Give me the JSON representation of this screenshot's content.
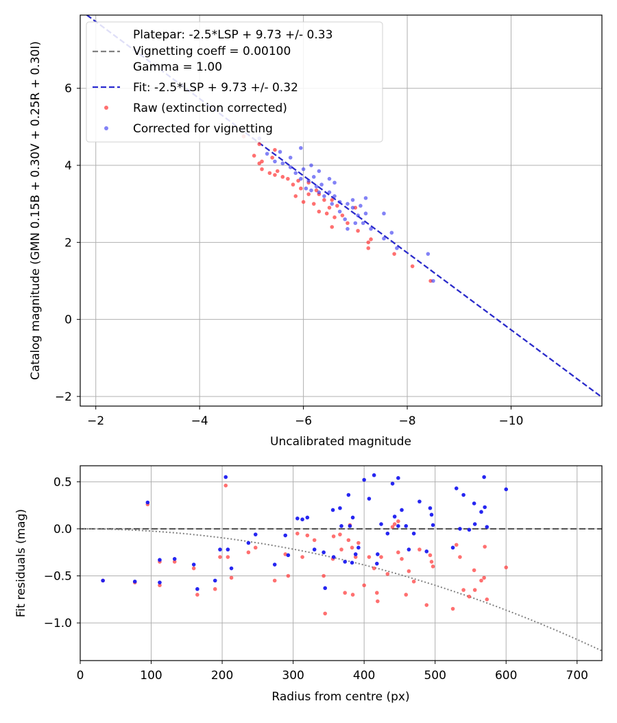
{
  "chart_data": [
    {
      "type": "scatter",
      "id": "top",
      "xlabel": "Uncalibrated magnitude",
      "ylabel": "Catalog magnitude (GMN 0.15B + 0.30V + 0.25R + 0.30I)",
      "xlim": [
        -1.7,
        -11.75
      ],
      "ylim": [
        7.9,
        -2.25
      ],
      "xticks": [
        -2,
        -4,
        -6,
        -8,
        -10
      ],
      "yticks": [
        -2,
        0,
        2,
        4,
        6
      ],
      "grid": true,
      "legend": {
        "placement": "top-left",
        "entries": [
          {
            "label": "Platepar: -2.5*LSP + 9.73 +/- 0.33",
            "style": "dashed",
            "color": "#808080"
          },
          {
            "label": "Vignetting coeff = 0.00100",
            "style": "none"
          },
          {
            "label": "Gamma = 1.00",
            "style": "none"
          },
          {
            "label": "Fit: -2.5*LSP + 9.73 +/- 0.32",
            "style": "dashed",
            "color": "#2a2ad0"
          },
          {
            "label": "Raw (extinction corrected)",
            "style": "dot",
            "color": "#ff4040"
          },
          {
            "label": "Corrected for vignetting",
            "style": "dot",
            "color": "#3030f0"
          }
        ]
      },
      "lines": [
        {
          "name": "Platepar",
          "slope": 1,
          "intercept": 9.73,
          "color": "#808080"
        },
        {
          "name": "Fit",
          "slope": 1,
          "intercept": 9.73,
          "color": "#2a2ad0"
        }
      ],
      "series": [
        {
          "name": "Raw (extinction corrected)",
          "color": "#ff4040",
          "points": [
            [
              -8.45,
              1.0
            ],
            [
              -8.1,
              1.38
            ],
            [
              -7.75,
              1.7
            ],
            [
              -7.25,
              1.85
            ],
            [
              -7.3,
              2.08
            ],
            [
              -7.05,
              2.3
            ],
            [
              -6.55,
              2.4
            ],
            [
              -6.85,
              2.5
            ],
            [
              -6.6,
              2.65
            ],
            [
              -6.75,
              2.7
            ],
            [
              -6.45,
              2.75
            ],
            [
              -6.3,
              2.8
            ],
            [
              -6.5,
              2.9
            ],
            [
              -6.65,
              2.95
            ],
            [
              -6.2,
              3.0
            ],
            [
              -6.0,
              3.05
            ],
            [
              -6.4,
              3.1
            ],
            [
              -5.85,
              3.2
            ],
            [
              -6.1,
              3.25
            ],
            [
              -6.3,
              3.25
            ],
            [
              -5.95,
              3.4
            ],
            [
              -5.8,
              3.5
            ],
            [
              -6.1,
              3.55
            ],
            [
              -5.9,
              3.6
            ],
            [
              -5.7,
              3.65
            ],
            [
              -5.6,
              3.7
            ],
            [
              -5.45,
              3.75
            ],
            [
              -5.35,
              3.8
            ],
            [
              -5.5,
              3.85
            ],
            [
              -5.2,
              3.9
            ],
            [
              -5.15,
              4.05
            ],
            [
              -5.2,
              4.1
            ],
            [
              -5.4,
              4.2
            ],
            [
              -5.05,
              4.25
            ],
            [
              -5.45,
              4.4
            ],
            [
              -5.15,
              4.55
            ],
            [
              -4.85,
              4.75
            ],
            [
              -7.0,
              2.9
            ],
            [
              -6.55,
              3.1
            ],
            [
              -6.25,
              3.35
            ],
            [
              -7.25,
              2.0
            ]
          ]
        },
        {
          "name": "Corrected for vignetting",
          "color": "#3030f0",
          "points": [
            [
              -8.5,
              1.0
            ],
            [
              -8.4,
              1.7
            ],
            [
              -7.8,
              1.85
            ],
            [
              -7.55,
              2.1
            ],
            [
              -7.7,
              2.25
            ],
            [
              -7.3,
              2.35
            ],
            [
              -7.15,
              2.5
            ],
            [
              -6.85,
              2.35
            ],
            [
              -7.0,
              2.5
            ],
            [
              -7.05,
              2.7
            ],
            [
              -7.2,
              2.75
            ],
            [
              -7.55,
              2.75
            ],
            [
              -6.8,
              2.6
            ],
            [
              -6.7,
              2.8
            ],
            [
              -6.95,
              2.9
            ],
            [
              -7.1,
              2.95
            ],
            [
              -6.85,
              3.0
            ],
            [
              -6.7,
              3.05
            ],
            [
              -6.55,
              3.0
            ],
            [
              -6.95,
              3.1
            ],
            [
              -7.2,
              3.15
            ],
            [
              -6.6,
              3.2
            ],
            [
              -6.4,
              3.2
            ],
            [
              -6.5,
              3.3
            ],
            [
              -6.3,
              3.3
            ],
            [
              -6.15,
              3.35
            ],
            [
              -6.05,
              3.4
            ],
            [
              -6.25,
              3.45
            ],
            [
              -6.6,
              3.55
            ],
            [
              -6.35,
              3.5
            ],
            [
              -6.5,
              3.65
            ],
            [
              -6.1,
              3.6
            ],
            [
              -5.95,
              3.65
            ],
            [
              -6.2,
              3.7
            ],
            [
              -5.85,
              3.8
            ],
            [
              -6.3,
              3.85
            ],
            [
              -6.0,
              3.9
            ],
            [
              -5.75,
              3.95
            ],
            [
              -6.15,
              4.0
            ],
            [
              -5.6,
              4.05
            ],
            [
              -5.45,
              4.1
            ],
            [
              -5.75,
              4.2
            ],
            [
              -5.3,
              4.3
            ],
            [
              -5.55,
              4.35
            ],
            [
              -5.95,
              4.45
            ],
            [
              -5.15,
              4.7
            ]
          ]
        }
      ]
    },
    {
      "type": "scatter",
      "id": "bottom",
      "xlabel": "Radius from centre (px)",
      "ylabel": "Fit residuals (mag)",
      "xlim": [
        0,
        735
      ],
      "ylim": [
        -1.4,
        0.67
      ],
      "xticks": [
        0,
        100,
        200,
        300,
        400,
        500,
        600,
        700
      ],
      "yticks": [
        0.5,
        0.0,
        -0.5,
        -1.0
      ],
      "ytick_labels": [
        "0.5",
        "0.0",
        "−0.5",
        "−1.0"
      ],
      "grid": true,
      "lines": [
        {
          "name": "zero",
          "type": "horizontal",
          "y": 0,
          "style": "dashed",
          "color": "#555555"
        },
        {
          "name": "vignetting",
          "type": "quadratic",
          "coef": -2.4e-06,
          "style": "dotted",
          "color": "#808080"
        }
      ],
      "series": [
        {
          "name": "Raw",
          "color": "#ff4040",
          "points": [
            [
              32,
              -0.55
            ],
            [
              77,
              -0.57
            ],
            [
              95,
              0.26
            ],
            [
              112,
              -0.35
            ],
            [
              112,
              -0.6
            ],
            [
              133,
              -0.35
            ],
            [
              160,
              -0.42
            ],
            [
              165,
              -0.7
            ],
            [
              190,
              -0.64
            ],
            [
              197,
              -0.3
            ],
            [
              205,
              0.46
            ],
            [
              208,
              -0.3
            ],
            [
              213,
              -0.52
            ],
            [
              237,
              -0.25
            ],
            [
              247,
              -0.2
            ],
            [
              274,
              -0.55
            ],
            [
              289,
              -0.27
            ],
            [
              293,
              -0.5
            ],
            [
              306,
              -0.05
            ],
            [
              313,
              -0.3
            ],
            [
              320,
              -0.07
            ],
            [
              330,
              -0.12
            ],
            [
              343,
              -0.5
            ],
            [
              345,
              -0.9
            ],
            [
              356,
              -0.32
            ],
            [
              357,
              -0.08
            ],
            [
              366,
              -0.06
            ],
            [
              368,
              -0.22
            ],
            [
              373,
              -0.68
            ],
            [
              378,
              -0.12
            ],
            [
              380,
              0.04
            ],
            [
              383,
              -0.2
            ],
            [
              384,
              -0.7
            ],
            [
              388,
              -0.3
            ],
            [
              392,
              -0.15
            ],
            [
              400,
              -0.6
            ],
            [
              407,
              -0.3
            ],
            [
              414,
              -0.42
            ],
            [
              418,
              -0.68
            ],
            [
              419,
              -0.77
            ],
            [
              424,
              -0.3
            ],
            [
              433,
              -0.48
            ],
            [
              440,
              0.02
            ],
            [
              443,
              0.05
            ],
            [
              448,
              0.08
            ],
            [
              448,
              -0.25
            ],
            [
              453,
              -0.32
            ],
            [
              459,
              -0.7
            ],
            [
              463,
              -0.45
            ],
            [
              470,
              -0.56
            ],
            [
              478,
              -0.22
            ],
            [
              488,
              -0.81
            ],
            [
              493,
              -0.28
            ],
            [
              495,
              -0.35
            ],
            [
              497,
              -0.4
            ],
            [
              525,
              -0.85
            ],
            [
              530,
              -0.17
            ],
            [
              535,
              -0.3
            ],
            [
              540,
              -0.65
            ],
            [
              548,
              -0.72
            ],
            [
              555,
              -0.44
            ],
            [
              556,
              -0.65
            ],
            [
              565,
              -0.55
            ],
            [
              569,
              -0.52
            ],
            [
              570,
              -0.19
            ],
            [
              573,
              -0.75
            ],
            [
              600,
              -0.41
            ]
          ]
        },
        {
          "name": "Corrected",
          "color": "#1a1af0",
          "points": [
            [
              32,
              -0.55
            ],
            [
              77,
              -0.56
            ],
            [
              95,
              0.28
            ],
            [
              112,
              -0.33
            ],
            [
              112,
              -0.57
            ],
            [
              133,
              -0.32
            ],
            [
              160,
              -0.38
            ],
            [
              165,
              -0.64
            ],
            [
              190,
              -0.55
            ],
            [
              197,
              -0.22
            ],
            [
              205,
              0.55
            ],
            [
              208,
              -0.22
            ],
            [
              213,
              -0.42
            ],
            [
              237,
              -0.15
            ],
            [
              247,
              -0.06
            ],
            [
              274,
              -0.38
            ],
            [
              289,
              -0.07
            ],
            [
              293,
              -0.28
            ],
            [
              306,
              0.11
            ],
            [
              313,
              0.1
            ],
            [
              320,
              0.12
            ],
            [
              330,
              -0.22
            ],
            [
              343,
              -0.25
            ],
            [
              345,
              -0.63
            ],
            [
              356,
              0.2
            ],
            [
              357,
              -0.3
            ],
            [
              366,
              0.22
            ],
            [
              368,
              0.03
            ],
            [
              373,
              -0.35
            ],
            [
              378,
              0.36
            ],
            [
              380,
              0.03
            ],
            [
              383,
              -0.36
            ],
            [
              384,
              0.12
            ],
            [
              388,
              -0.27
            ],
            [
              392,
              -0.2
            ],
            [
              400,
              0.52
            ],
            [
              407,
              0.32
            ],
            [
              414,
              0.57
            ],
            [
              418,
              -0.37
            ],
            [
              419,
              -0.27
            ],
            [
              424,
              0.05
            ],
            [
              433,
              -0.05
            ],
            [
              440,
              0.48
            ],
            [
              443,
              0.13
            ],
            [
              448,
              0.03
            ],
            [
              448,
              0.54
            ],
            [
              453,
              0.2
            ],
            [
              459,
              0.03
            ],
            [
              463,
              -0.22
            ],
            [
              470,
              -0.05
            ],
            [
              478,
              0.29
            ],
            [
              488,
              -0.24
            ],
            [
              493,
              0.22
            ],
            [
              495,
              0.15
            ],
            [
              497,
              0.04
            ],
            [
              525,
              -0.2
            ],
            [
              530,
              0.43
            ],
            [
              535,
              0.0
            ],
            [
              540,
              0.36
            ],
            [
              548,
              -0.01
            ],
            [
              555,
              0.27
            ],
            [
              556,
              0.05
            ],
            [
              565,
              0.18
            ],
            [
              569,
              0.55
            ],
            [
              570,
              0.23
            ],
            [
              573,
              0.02
            ],
            [
              600,
              0.42
            ]
          ]
        }
      ]
    }
  ]
}
